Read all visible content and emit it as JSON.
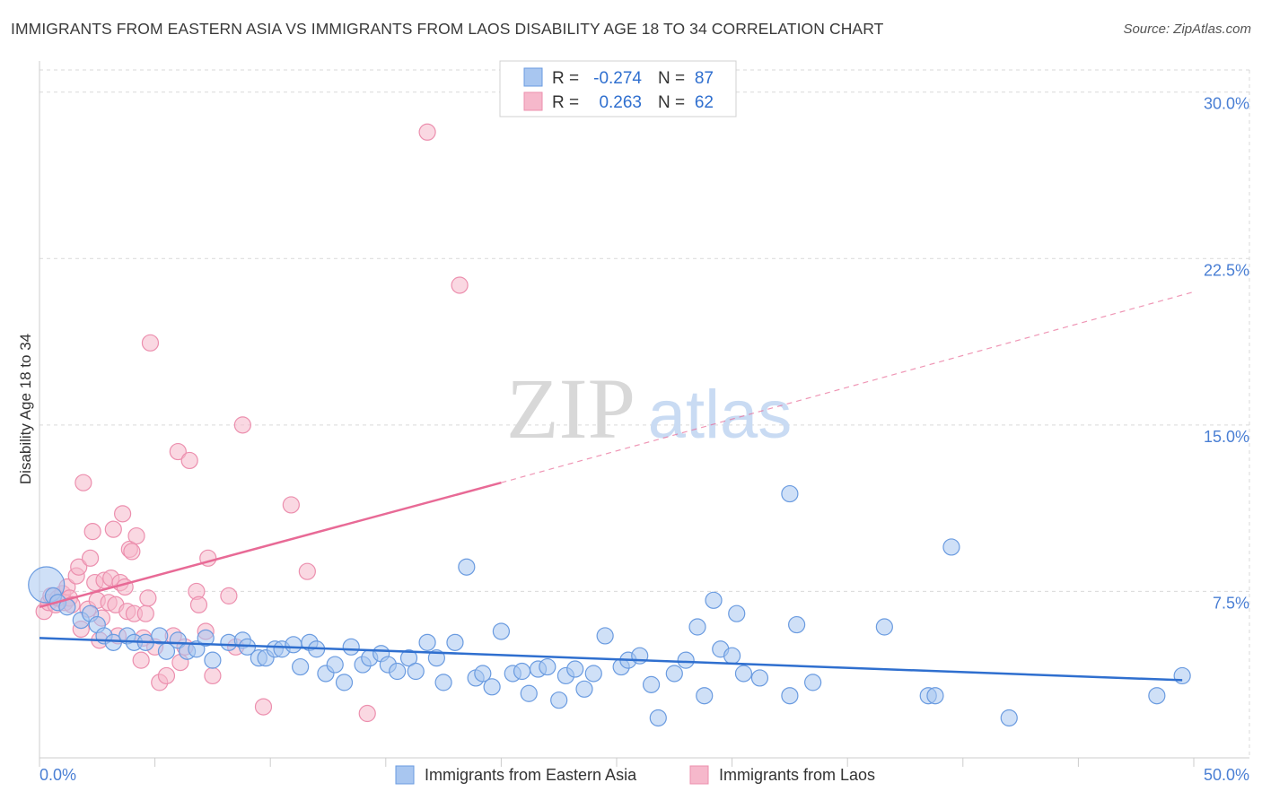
{
  "title": "IMMIGRANTS FROM EASTERN ASIA VS IMMIGRANTS FROM LAOS DISABILITY AGE 18 TO 34 CORRELATION CHART",
  "source": "Source: ZipAtlas.com",
  "watermark": {
    "zip": "ZIP",
    "atlas": "atlas"
  },
  "colors": {
    "blue_fill": "#a8c6f0",
    "blue_stroke": "#6a9be0",
    "blue_line": "#2f6fcf",
    "pink_fill": "#f6b8cb",
    "pink_stroke": "#ec8fae",
    "pink_line": "#e86a96",
    "tick": "#4a7fd4",
    "grid": "#d9d9d9"
  },
  "legend": {
    "rows": [
      {
        "r_label": "R =",
        "r_value": "-0.274",
        "n_label": "N =",
        "n_value": "87"
      },
      {
        "r_label": "R =",
        "r_value": "0.263",
        "n_label": "N =",
        "n_value": "62"
      }
    ]
  },
  "chart_data": {
    "type": "scatter",
    "xlabel": "",
    "ylabel": "Disability Age 18 to 34",
    "xlim": [
      0,
      50
    ],
    "ylim": [
      0,
      31
    ],
    "x_tick_labels": [
      {
        "value": 0,
        "label": "0.0%"
      },
      {
        "value": 50,
        "label": "50.0%"
      }
    ],
    "y_tick_labels": [
      {
        "value": 7.5,
        "label": "7.5%"
      },
      {
        "value": 15,
        "label": "15.0%"
      },
      {
        "value": 22.5,
        "label": "22.5%"
      },
      {
        "value": 30,
        "label": "30.0%"
      }
    ],
    "grid": true,
    "legend_placement": "bottom-center",
    "series": [
      {
        "name": "Immigrants from Eastern Asia",
        "r": -0.274,
        "n": 87,
        "trend": {
          "x0": 0,
          "y0": 5.4,
          "x1": 49.5,
          "y1": 3.5
        },
        "points": [
          [
            0.3,
            7.8
          ],
          [
            0.6,
            7.3
          ],
          [
            0.8,
            7.0
          ],
          [
            1.2,
            6.8
          ],
          [
            1.8,
            6.2
          ],
          [
            2.2,
            6.5
          ],
          [
            2.5,
            6.0
          ],
          [
            2.8,
            5.5
          ],
          [
            3.2,
            5.2
          ],
          [
            3.8,
            5.5
          ],
          [
            4.1,
            5.2
          ],
          [
            4.6,
            5.2
          ],
          [
            5.2,
            5.5
          ],
          [
            5.5,
            4.8
          ],
          [
            6.0,
            5.3
          ],
          [
            6.4,
            4.8
          ],
          [
            6.8,
            4.9
          ],
          [
            7.2,
            5.4
          ],
          [
            7.5,
            4.4
          ],
          [
            8.2,
            5.2
          ],
          [
            8.8,
            5.3
          ],
          [
            9.0,
            5.0
          ],
          [
            9.5,
            4.5
          ],
          [
            9.8,
            4.5
          ],
          [
            10.2,
            4.9
          ],
          [
            10.5,
            4.9
          ],
          [
            11.0,
            5.1
          ],
          [
            11.3,
            4.1
          ],
          [
            11.7,
            5.2
          ],
          [
            12.0,
            4.9
          ],
          [
            12.4,
            3.8
          ],
          [
            12.8,
            4.2
          ],
          [
            13.2,
            3.4
          ],
          [
            13.5,
            5.0
          ],
          [
            14.0,
            4.2
          ],
          [
            14.3,
            4.5
          ],
          [
            14.8,
            4.7
          ],
          [
            15.1,
            4.2
          ],
          [
            15.5,
            3.9
          ],
          [
            16.0,
            4.5
          ],
          [
            16.3,
            3.9
          ],
          [
            16.8,
            5.2
          ],
          [
            17.2,
            4.5
          ],
          [
            17.5,
            3.4
          ],
          [
            18.0,
            5.2
          ],
          [
            18.5,
            8.6
          ],
          [
            18.9,
            3.6
          ],
          [
            19.2,
            3.8
          ],
          [
            19.6,
            3.2
          ],
          [
            20.0,
            5.7
          ],
          [
            20.5,
            3.8
          ],
          [
            20.9,
            3.9
          ],
          [
            21.2,
            2.9
          ],
          [
            21.6,
            4.0
          ],
          [
            22.0,
            4.1
          ],
          [
            22.5,
            2.6
          ],
          [
            22.8,
            3.7
          ],
          [
            23.2,
            4.0
          ],
          [
            23.6,
            3.1
          ],
          [
            24.0,
            3.8
          ],
          [
            24.5,
            5.5
          ],
          [
            25.2,
            4.1
          ],
          [
            25.5,
            4.4
          ],
          [
            26.0,
            4.6
          ],
          [
            26.5,
            3.3
          ],
          [
            26.8,
            1.8
          ],
          [
            27.5,
            3.8
          ],
          [
            28.0,
            4.4
          ],
          [
            28.5,
            5.9
          ],
          [
            28.8,
            2.8
          ],
          [
            29.2,
            7.1
          ],
          [
            29.5,
            4.9
          ],
          [
            30.0,
            4.6
          ],
          [
            30.2,
            6.5
          ],
          [
            30.5,
            3.8
          ],
          [
            31.2,
            3.6
          ],
          [
            32.5,
            11.9
          ],
          [
            32.8,
            6.0
          ],
          [
            32.5,
            2.8
          ],
          [
            33.5,
            3.4
          ],
          [
            36.6,
            5.9
          ],
          [
            38.5,
            2.8
          ],
          [
            38.8,
            2.8
          ],
          [
            39.5,
            9.5
          ],
          [
            42.0,
            1.8
          ],
          [
            48.4,
            2.8
          ],
          [
            49.5,
            3.7
          ]
        ]
      },
      {
        "name": "Immigrants from Laos",
        "r": 0.263,
        "n": 62,
        "trend": {
          "x0": 0,
          "y0": 6.8,
          "x1": 20,
          "y1": 12.4,
          "x1_ext": 50,
          "y1_ext": 21.0
        },
        "points": [
          [
            0.2,
            6.6
          ],
          [
            0.4,
            7.0
          ],
          [
            0.5,
            7.3
          ],
          [
            0.7,
            6.9
          ],
          [
            0.8,
            7.2
          ],
          [
            1.0,
            7.4
          ],
          [
            1.1,
            7.0
          ],
          [
            1.2,
            7.7
          ],
          [
            1.3,
            7.2
          ],
          [
            1.4,
            6.9
          ],
          [
            1.6,
            8.2
          ],
          [
            1.7,
            8.6
          ],
          [
            1.8,
            5.8
          ],
          [
            1.9,
            12.4
          ],
          [
            2.1,
            6.7
          ],
          [
            2.2,
            9.0
          ],
          [
            2.3,
            10.2
          ],
          [
            2.4,
            7.9
          ],
          [
            2.5,
            7.1
          ],
          [
            2.6,
            5.3
          ],
          [
            2.7,
            6.3
          ],
          [
            2.8,
            8.0
          ],
          [
            3.0,
            7.0
          ],
          [
            3.1,
            8.1
          ],
          [
            3.2,
            10.3
          ],
          [
            3.3,
            6.9
          ],
          [
            3.4,
            5.5
          ],
          [
            3.5,
            7.9
          ],
          [
            3.6,
            11.0
          ],
          [
            3.7,
            7.7
          ],
          [
            3.8,
            6.6
          ],
          [
            3.9,
            9.4
          ],
          [
            4.0,
            9.3
          ],
          [
            4.1,
            6.5
          ],
          [
            4.2,
            10.0
          ],
          [
            4.4,
            4.4
          ],
          [
            4.5,
            5.4
          ],
          [
            4.6,
            6.5
          ],
          [
            4.7,
            7.2
          ],
          [
            4.8,
            18.7
          ],
          [
            5.0,
            5.0
          ],
          [
            5.2,
            3.4
          ],
          [
            5.5,
            3.7
          ],
          [
            5.8,
            5.5
          ],
          [
            6.0,
            13.8
          ],
          [
            6.1,
            4.3
          ],
          [
            6.3,
            5.0
          ],
          [
            6.5,
            13.4
          ],
          [
            6.8,
            7.5
          ],
          [
            6.9,
            6.9
          ],
          [
            7.2,
            5.7
          ],
          [
            7.3,
            9.0
          ],
          [
            7.5,
            3.7
          ],
          [
            8.2,
            7.3
          ],
          [
            8.5,
            5.0
          ],
          [
            8.8,
            15.0
          ],
          [
            9.7,
            2.3
          ],
          [
            10.9,
            11.4
          ],
          [
            11.6,
            8.4
          ],
          [
            14.2,
            2.0
          ],
          [
            16.8,
            28.2
          ],
          [
            18.2,
            21.3
          ]
        ]
      }
    ]
  }
}
